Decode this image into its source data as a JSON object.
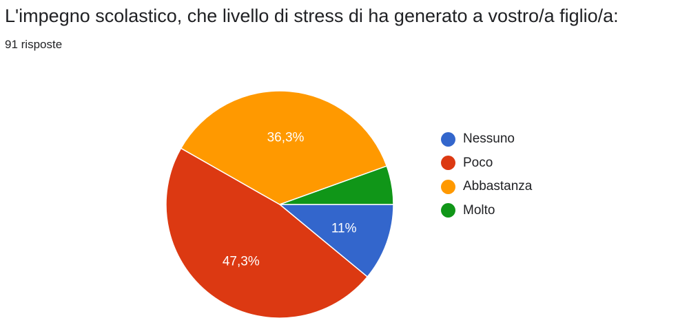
{
  "header": {
    "title": "L'impegno scolastico, che livello di stress di ha generato a vostro/a figlio/a:",
    "responses": "91 risposte"
  },
  "chart_data": {
    "type": "pie",
    "title": "L'impegno scolastico, che livello di stress di ha generato a vostro/a figlio/a:",
    "categories": [
      "Nessuno",
      "Poco",
      "Abbastanza",
      "Molto"
    ],
    "values": [
      11.0,
      47.3,
      36.3,
      5.5
    ],
    "labels": [
      "11%",
      "47,3%",
      "36,3%",
      ""
    ],
    "colors": [
      "#3366cc",
      "#dc3912",
      "#ff9900",
      "#109618"
    ],
    "legend_position": "right"
  }
}
